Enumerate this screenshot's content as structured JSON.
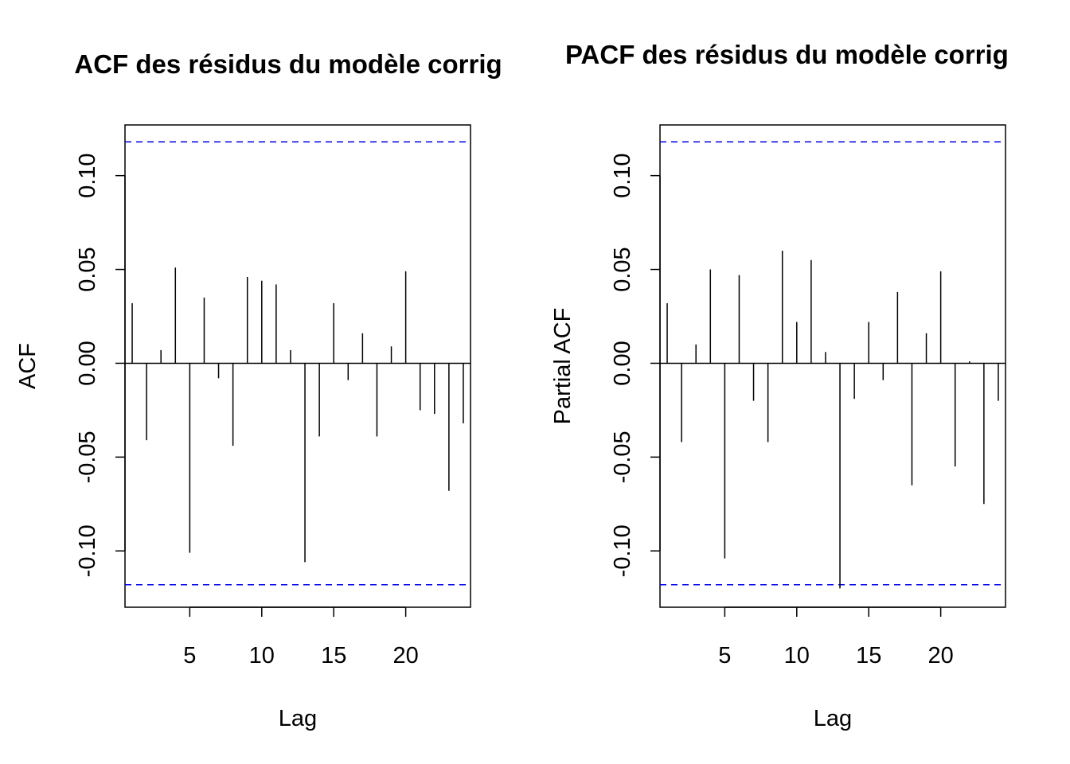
{
  "chart_data": [
    {
      "type": "bar",
      "title": "ACF des résidus du modèle corrig",
      "xlabel": "Lag",
      "ylabel": "ACF",
      "xlim": [
        0.5,
        24.5
      ],
      "ylim": [
        -0.13,
        0.127
      ],
      "x_ticks": [
        5,
        10,
        15,
        20
      ],
      "y_ticks": [
        -0.1,
        -0.05,
        0.0,
        0.05,
        0.1
      ],
      "y_tick_labels": [
        "-0.10",
        "-0.05",
        "0.00",
        "0.05",
        "0.10"
      ],
      "confidence_bound": 0.118,
      "confidence_color": "#0000ee",
      "lags": [
        1,
        2,
        3,
        4,
        5,
        6,
        7,
        8,
        9,
        10,
        11,
        12,
        13,
        14,
        15,
        16,
        17,
        18,
        19,
        20,
        21,
        22,
        23,
        24
      ],
      "values": [
        0.032,
        -0.041,
        0.007,
        0.051,
        -0.101,
        0.035,
        -0.008,
        -0.044,
        0.046,
        0.044,
        0.042,
        0.007,
        -0.106,
        -0.039,
        0.032,
        -0.009,
        0.016,
        -0.039,
        0.009,
        0.049,
        -0.025,
        -0.027,
        -0.068,
        -0.032
      ]
    },
    {
      "type": "bar",
      "title": "PACF des résidus du modèle corrig",
      "xlabel": "Lag",
      "ylabel": "Partial ACF",
      "xlim": [
        0.5,
        24.5
      ],
      "ylim": [
        -0.13,
        0.127
      ],
      "x_ticks": [
        5,
        10,
        15,
        20
      ],
      "y_ticks": [
        -0.1,
        -0.05,
        0.0,
        0.05,
        0.1
      ],
      "y_tick_labels": [
        "-0.10",
        "-0.05",
        "0.00",
        "0.05",
        "0.10"
      ],
      "confidence_bound": 0.118,
      "confidence_color": "#0000ee",
      "lags": [
        1,
        2,
        3,
        4,
        5,
        6,
        7,
        8,
        9,
        10,
        11,
        12,
        13,
        14,
        15,
        16,
        17,
        18,
        19,
        20,
        21,
        22,
        23,
        24
      ],
      "values": [
        0.032,
        -0.042,
        0.01,
        0.05,
        -0.104,
        0.047,
        -0.02,
        -0.042,
        0.06,
        0.022,
        0.055,
        0.006,
        -0.12,
        -0.019,
        0.022,
        -0.009,
        0.038,
        -0.065,
        0.016,
        0.049,
        -0.055,
        0.001,
        -0.075,
        -0.02
      ]
    }
  ]
}
